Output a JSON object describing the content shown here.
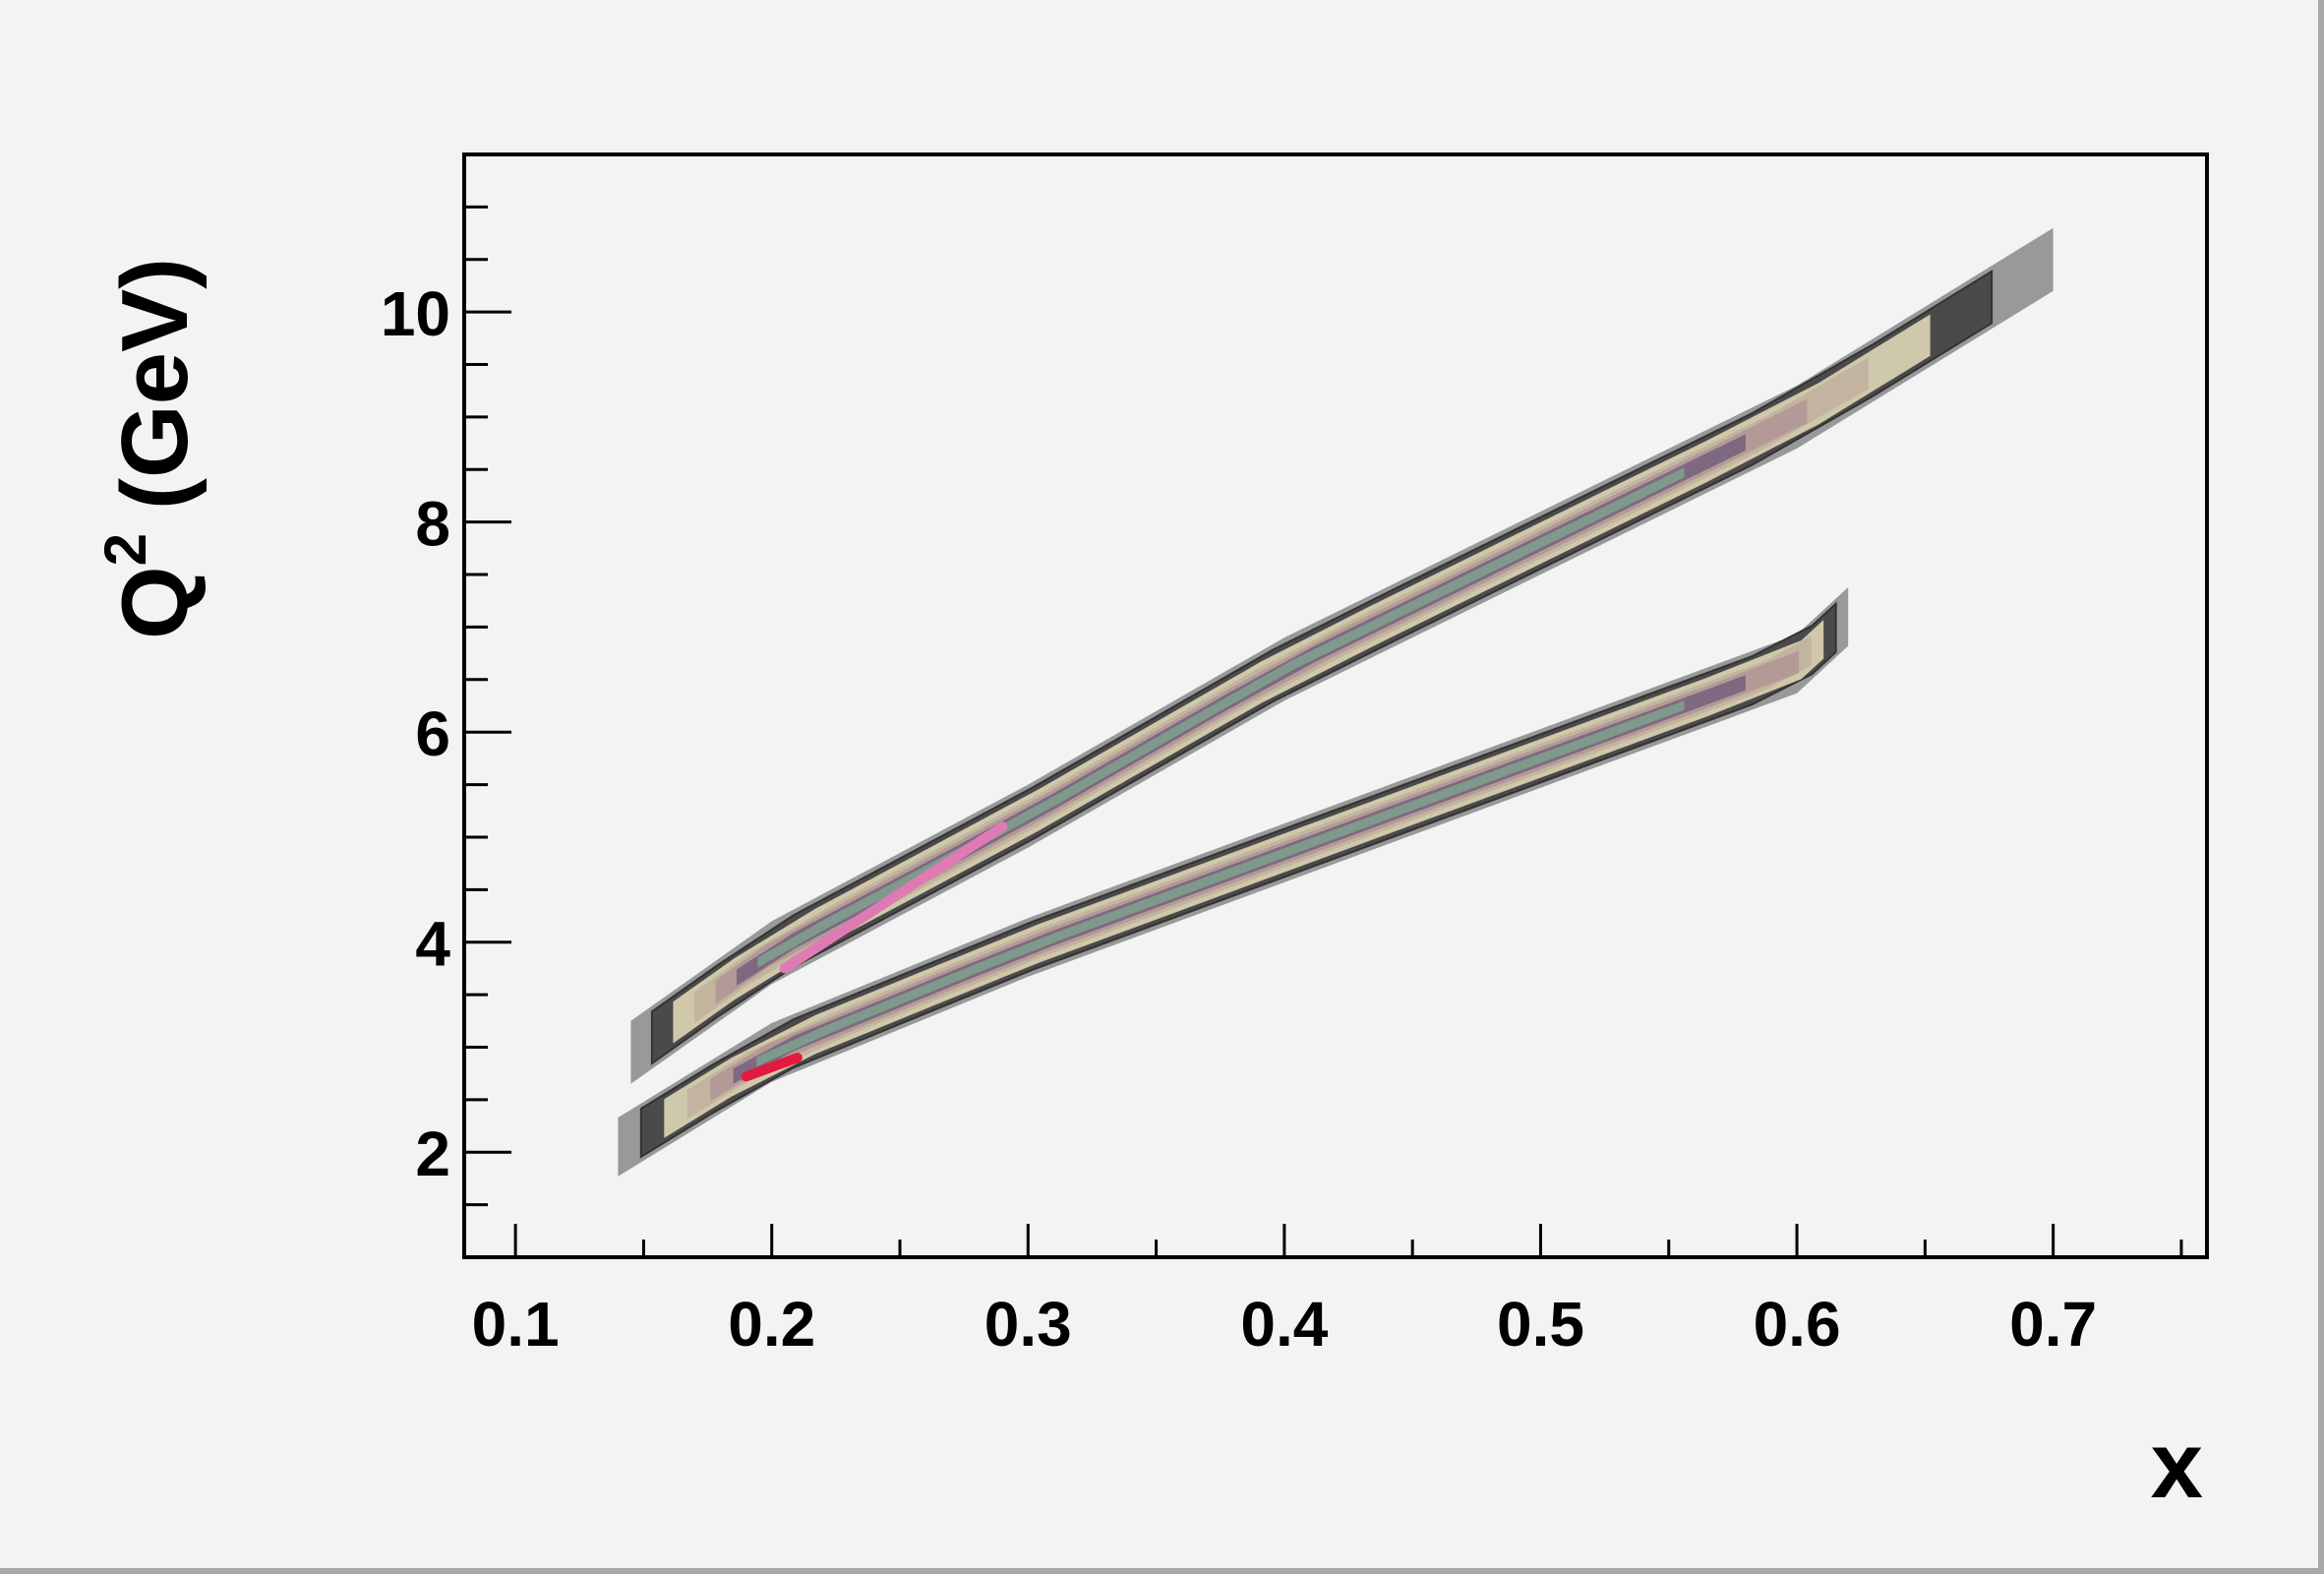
{
  "chart_data": {
    "type": "contour",
    "xlabel": "x",
    "ylabel": "Q² (GeV)",
    "ylabel_parts": {
      "base": "Q",
      "sup": "2",
      "unit": "(GeV)"
    },
    "xlim": [
      0.08,
      0.76
    ],
    "ylim": [
      1.0,
      11.5
    ],
    "x_ticks": [
      0.1,
      0.2,
      0.3,
      0.4,
      0.5,
      0.6,
      0.7
    ],
    "x_tick_labels": [
      "0.1",
      "0.2",
      "0.3",
      "0.4",
      "0.5",
      "0.6",
      "0.7"
    ],
    "y_ticks": [
      2,
      4,
      6,
      8,
      10
    ],
    "y_tick_labels": [
      "2",
      "4",
      "6",
      "8",
      "10"
    ],
    "grid": false,
    "level_colors": [
      "#999999",
      "#4a4a4a",
      "#d0c8aa",
      "#c3b4a0",
      "#b49a96",
      "#7d6a80",
      "#7f9a8c",
      "#8a6655",
      "#7fcaa8",
      "#e07ab4",
      "#e01a40"
    ],
    "bands": [
      {
        "name": "upper",
        "centerline": [
          [
            0.145,
            2.95
          ],
          [
            0.2,
            3.9
          ],
          [
            0.3,
            5.2
          ],
          [
            0.4,
            6.6
          ],
          [
            0.5,
            7.8
          ],
          [
            0.6,
            9.0
          ],
          [
            0.7,
            10.5
          ]
        ],
        "halfwidth_q2": 0.3,
        "core": [
          [
            0.205,
            3.75
          ],
          [
            0.29,
            5.1
          ]
        ]
      },
      {
        "name": "lower",
        "centerline": [
          [
            0.14,
            2.05
          ],
          [
            0.2,
            2.95
          ],
          [
            0.3,
            3.95
          ],
          [
            0.4,
            4.85
          ],
          [
            0.5,
            5.75
          ],
          [
            0.6,
            6.65
          ],
          [
            0.62,
            7.1
          ]
        ],
        "halfwidth_q2": 0.28,
        "core": [
          [
            0.19,
            2.72
          ],
          [
            0.21,
            2.9
          ]
        ]
      }
    ]
  }
}
